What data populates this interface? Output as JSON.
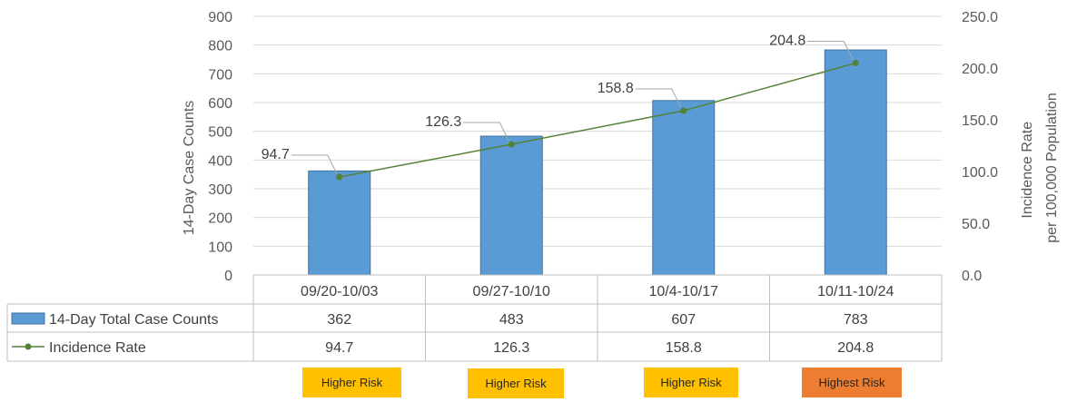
{
  "chart_data": {
    "type": "bar",
    "categories": [
      "09/20-10/03",
      "09/27-10/10",
      "10/4-10/17",
      "10/11-10/24"
    ],
    "series": [
      {
        "name": "14-Day Total Case Counts",
        "type": "bar",
        "axis": "left",
        "color": "#5b9bd5",
        "values": [
          362,
          483,
          607,
          783
        ]
      },
      {
        "name": "Incidence Rate",
        "type": "line",
        "axis": "right",
        "color": "#548235",
        "values": [
          94.7,
          126.3,
          158.8,
          204.8
        ]
      }
    ],
    "ylabel": "14-Day Case Counts",
    "y2label_lines": [
      "Incidence Rate",
      "per 100,000 Population"
    ],
    "ylim": [
      0,
      900
    ],
    "y_ticks": [
      "0",
      "100",
      "200",
      "300",
      "400",
      "500",
      "600",
      "700",
      "800",
      "900"
    ],
    "y2lim": [
      0,
      250
    ],
    "y2_ticks": [
      "0.0",
      "50.0",
      "100.0",
      "150.0",
      "200.0",
      "250.0"
    ],
    "data_labels": [
      "94.7",
      "126.3",
      "158.8",
      "204.8"
    ],
    "data_table": {
      "rows": [
        {
          "label": "14-Day Total Case Counts",
          "values": [
            "362",
            "483",
            "607",
            "783"
          ]
        },
        {
          "label": "Incidence Rate",
          "values": [
            "94.7",
            "126.3",
            "158.8",
            "204.8"
          ]
        }
      ]
    },
    "grid": true,
    "legend": "data table"
  },
  "risk_badges": [
    {
      "label": "Higher Risk",
      "color": "#ffc000"
    },
    {
      "label": "Higher Risk",
      "color": "#ffc000"
    },
    {
      "label": "Higher Risk",
      "color": "#ffc000"
    },
    {
      "label": "Highest Risk",
      "color": "#ed7d31"
    }
  ]
}
